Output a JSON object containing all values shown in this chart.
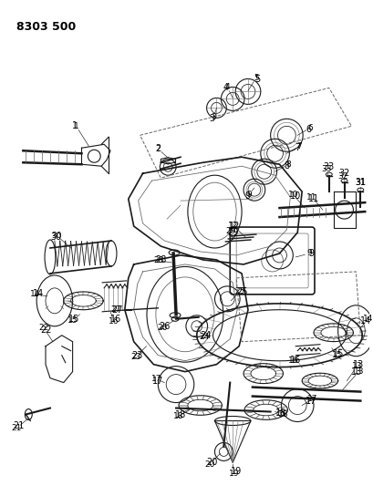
{
  "title": "8303 500",
  "bg_color": "#ffffff",
  "fig_width": 4.1,
  "fig_height": 5.33,
  "dpi": 100,
  "line_color": "#1a1a1a",
  "gray_color": "#666666",
  "light_gray": "#999999"
}
